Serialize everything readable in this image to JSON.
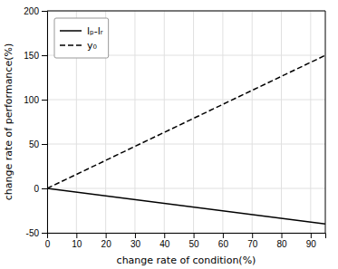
{
  "chart_data": {
    "type": "line",
    "xlabel": "change rate of condition(%)",
    "ylabel": "change rate of performance(%)",
    "x": [
      0,
      95
    ],
    "series": [
      {
        "name": "lₚ-lᵣ",
        "color": "#000000",
        "line_style": "solid",
        "values": [
          0,
          -39.995
        ]
      },
      {
        "name": "y₀",
        "color": "#000000",
        "line_style": "dashed",
        "values": [
          0,
          149.91
        ]
      }
    ],
    "xlim": [
      0,
      95
    ],
    "ylim": [
      -50,
      200
    ],
    "xticks": [
      0,
      10,
      20,
      30,
      40,
      50,
      60,
      70,
      80,
      90
    ],
    "yticks": [
      -50,
      0,
      50,
      100,
      150,
      200
    ],
    "grid": true,
    "legend": "upper left"
  }
}
